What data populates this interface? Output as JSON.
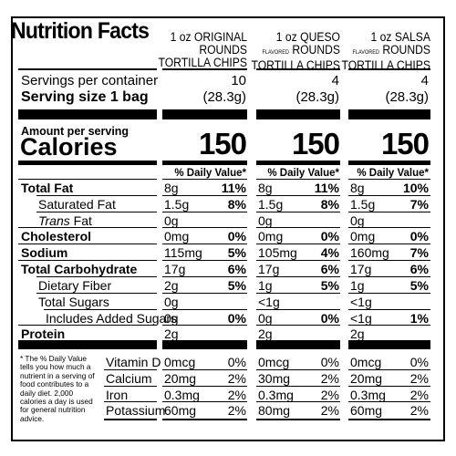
{
  "title": "Nutrition Facts",
  "columns": [
    {
      "line1": "1 oz ORIGINAL",
      "prefix": "",
      "line2": "ROUNDS",
      "line3": "TORTILLA CHIPS"
    },
    {
      "line1": "1 oz QUESO",
      "prefix": "FLAVORED",
      "line2": "ROUNDS",
      "line3": "TORTILLA CHIPS"
    },
    {
      "line1": "1 oz SALSA",
      "prefix": "FLAVORED",
      "line2": "ROUNDS",
      "line3": "TORTILLA CHIPS"
    }
  ],
  "servings": {
    "label": "Servings per container",
    "values": [
      "10",
      "4",
      "4"
    ]
  },
  "serving_size": {
    "label": "Serving size 1 bag",
    "values": [
      "(28.3g)",
      "(28.3g)",
      "(28.3g)"
    ]
  },
  "amount_label": "Amount per serving",
  "calories": {
    "label": "Calories",
    "values": [
      "150",
      "150",
      "150"
    ]
  },
  "dv_header": "% Daily Value*",
  "nutrients": [
    {
      "label": "Total Fat",
      "style": "bold",
      "indent": 0,
      "values": [
        [
          "8g",
          "11%"
        ],
        [
          "8g",
          "11%"
        ],
        [
          "8g",
          "10%"
        ]
      ]
    },
    {
      "label": "Saturated Fat",
      "style": "normal",
      "indent": 1,
      "values": [
        [
          "1.5g",
          "8%"
        ],
        [
          "1.5g",
          "8%"
        ],
        [
          "1.5g",
          "7%"
        ]
      ]
    },
    {
      "label": "Trans",
      "label_suffix": " Fat",
      "style": "trans",
      "indent": 1,
      "values": [
        [
          "0g",
          ""
        ],
        [
          "0g",
          ""
        ],
        [
          "0g",
          ""
        ]
      ]
    },
    {
      "label": "Cholesterol",
      "style": "bold",
      "indent": 0,
      "values": [
        [
          "0mg",
          "0%"
        ],
        [
          "0mg",
          "0%"
        ],
        [
          "0mg",
          "0%"
        ]
      ]
    },
    {
      "label": "Sodium",
      "style": "bold",
      "indent": 0,
      "values": [
        [
          "115mg",
          "5%"
        ],
        [
          "105mg",
          "4%"
        ],
        [
          "160mg",
          "7%"
        ]
      ]
    },
    {
      "label": "Total Carbohydrate",
      "style": "bold",
      "indent": 0,
      "values": [
        [
          "17g",
          "6%"
        ],
        [
          "17g",
          "6%"
        ],
        [
          "17g",
          "6%"
        ]
      ]
    },
    {
      "label": "Dietary Fiber",
      "style": "normal",
      "indent": 1,
      "values": [
        [
          "2g",
          "5%"
        ],
        [
          "1g",
          "5%"
        ],
        [
          "1g",
          "5%"
        ]
      ]
    },
    {
      "label": "Total Sugars",
      "style": "normal",
      "indent": 1,
      "values": [
        [
          "0g",
          ""
        ],
        [
          "<1g",
          ""
        ],
        [
          "<1g",
          ""
        ]
      ]
    },
    {
      "label": "Includes Added Sugars",
      "style": "normal",
      "indent": 2,
      "values": [
        [
          "0g",
          "0%"
        ],
        [
          "0g",
          "0%"
        ],
        [
          "<1g",
          "1%"
        ]
      ]
    },
    {
      "label": "Protein",
      "style": "bold",
      "indent": 0,
      "values": [
        [
          "2g",
          ""
        ],
        [
          "2g",
          ""
        ],
        [
          "2g",
          ""
        ]
      ]
    }
  ],
  "vitamins": [
    {
      "label": "Vitamin D",
      "values": [
        [
          "0mcg",
          "0%"
        ],
        [
          "0mcg",
          "0%"
        ],
        [
          "0mcg",
          "0%"
        ]
      ]
    },
    {
      "label": "Calcium",
      "values": [
        [
          "20mg",
          "2%"
        ],
        [
          "30mg",
          "2%"
        ],
        [
          "20mg",
          "2%"
        ]
      ]
    },
    {
      "label": "Iron",
      "values": [
        [
          "0.3mg",
          "2%"
        ],
        [
          "0.3mg",
          "2%"
        ],
        [
          "0.3mg",
          "2%"
        ]
      ]
    },
    {
      "label": "Potassium",
      "values": [
        [
          "60mg",
          "2%"
        ],
        [
          "80mg",
          "2%"
        ],
        [
          "60mg",
          "2%"
        ]
      ]
    }
  ],
  "footnote": "* The % Daily Value tells you how much a nutrient in a serving of food contributes to a daily diet. 2,000 calories a day is used for general nutrition advice."
}
